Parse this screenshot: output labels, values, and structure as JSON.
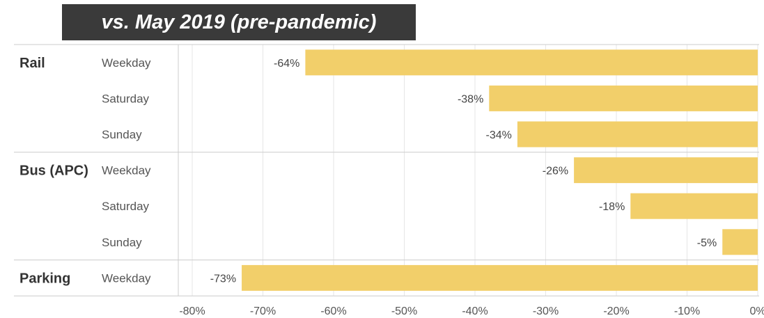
{
  "title": "vs. May 2019 (pre-pandemic)",
  "chart_data": {
    "type": "bar",
    "orientation": "horizontal",
    "title": "vs. May 2019 (pre-pandemic)",
    "xlabel": "",
    "ylabel": "",
    "xlim": [
      -0.8,
      0
    ],
    "x_ticks": [
      "-80%",
      "-70%",
      "-60%",
      "-50%",
      "-40%",
      "-30%",
      "-20%",
      "-10%",
      "0%"
    ],
    "grid": true,
    "bar_color": "#F2CF6A",
    "groups": [
      {
        "name": "Rail",
        "rows": [
          {
            "label": "Weekday",
            "value": -0.64,
            "display": "-64%"
          },
          {
            "label": "Saturday",
            "value": -0.38,
            "display": "-38%"
          },
          {
            "label": "Sunday",
            "value": -0.34,
            "display": "-34%"
          }
        ]
      },
      {
        "name": "Bus (APC)",
        "rows": [
          {
            "label": "Weekday",
            "value": -0.26,
            "display": "-26%"
          },
          {
            "label": "Saturday",
            "value": -0.18,
            "display": "-18%"
          },
          {
            "label": "Sunday",
            "value": -0.05,
            "display": "-5%"
          }
        ]
      },
      {
        "name": "Parking",
        "rows": [
          {
            "label": "Weekday",
            "value": -0.73,
            "display": "-73%"
          }
        ]
      }
    ]
  }
}
